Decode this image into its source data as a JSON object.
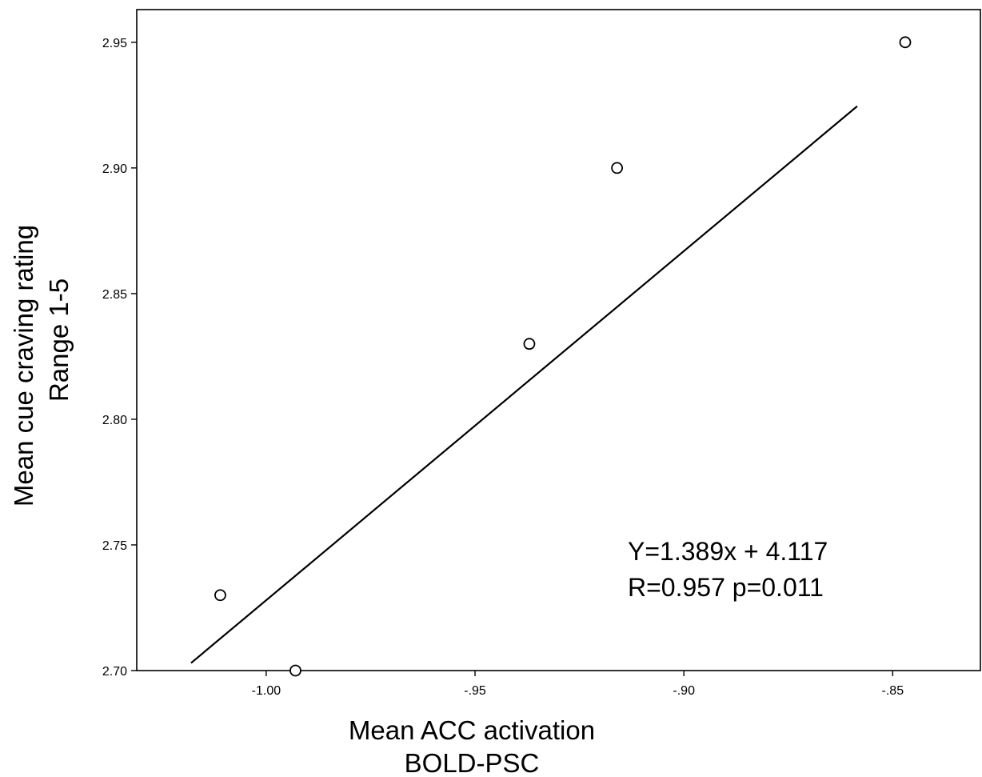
{
  "chart_data": {
    "type": "scatter",
    "title": "",
    "xlabel": [
      "Mean ACC activation",
      "BOLD-PSC"
    ],
    "ylabel": [
      "Mean cue craving rating",
      "Range 1-5"
    ],
    "xlim": [
      -1.031,
      -0.829
    ],
    "ylim": [
      2.7,
      2.963
    ],
    "x_ticks": [
      -1.0,
      -0.95,
      -0.9,
      -0.85
    ],
    "x_tick_labels": [
      "-1.00",
      "-.95",
      "-.90",
      "-.85"
    ],
    "y_ticks": [
      2.7,
      2.75,
      2.8,
      2.85,
      2.9,
      2.95
    ],
    "y_tick_labels": [
      "2.70",
      "2.75",
      "2.80",
      "2.85",
      "2.90",
      "2.95"
    ],
    "grid": false,
    "series": [
      {
        "points": [
          {
            "x": -1.011,
            "y": 2.73
          },
          {
            "x": -0.993,
            "y": 2.7
          },
          {
            "x": -0.937,
            "y": 2.83
          },
          {
            "x": -0.916,
            "y": 2.9
          },
          {
            "x": -0.847,
            "y": 2.95
          }
        ]
      }
    ],
    "fit_line": {
      "slope": 1.389,
      "intercept": 4.117,
      "x_range": [
        -1.018,
        -0.8585
      ]
    },
    "annotations": [
      "Y=1.389x + 4.117",
      "R=0.957 p=0.011"
    ]
  }
}
